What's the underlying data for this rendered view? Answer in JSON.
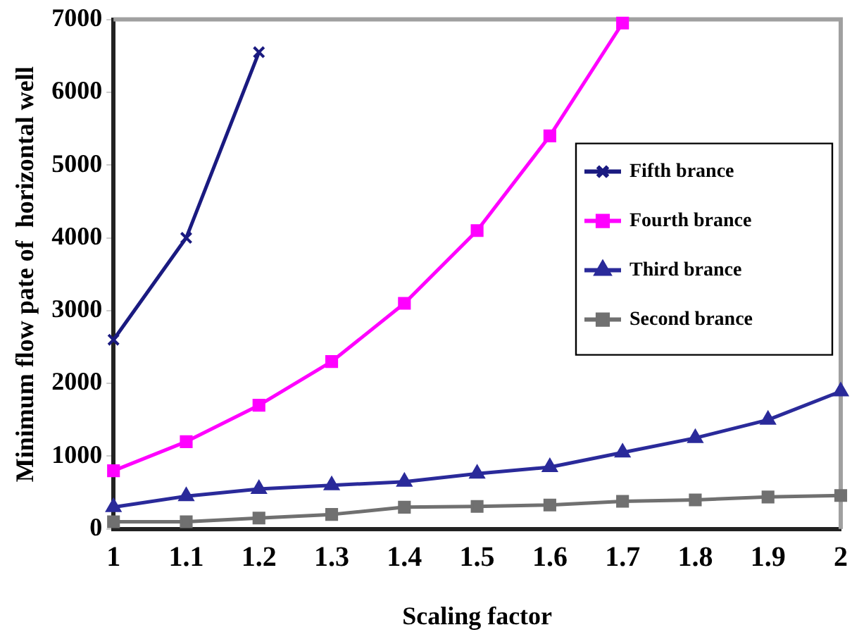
{
  "chart_data": {
    "type": "line",
    "xlabel": "Scaling factor",
    "ylabel": "Minimum flow pate of  horizontal well",
    "xlim": [
      1,
      2
    ],
    "xticks": [
      1,
      1.1,
      1.2,
      1.3,
      1.4,
      1.5,
      1.6,
      1.7,
      1.8,
      1.9,
      2
    ],
    "ylim": [
      0,
      7000
    ],
    "yticks": [
      0,
      1000,
      2000,
      3000,
      4000,
      5000,
      6000,
      7000
    ],
    "grid": false,
    "legend": "right",
    "line_style": "solid",
    "series": [
      {
        "name": "Fifth brance",
        "color": "#1a1a80",
        "marker": "cross",
        "x": [
          1,
          1.1,
          1.2
        ],
        "values": [
          2600,
          4000,
          6550
        ]
      },
      {
        "name": "Fourth brance",
        "color": "#ff00ff",
        "marker": "square",
        "x": [
          1,
          1.1,
          1.2,
          1.3,
          1.4,
          1.5,
          1.6,
          1.7
        ],
        "values": [
          800,
          1200,
          1700,
          2300,
          3100,
          4100,
          5400,
          6950
        ]
      },
      {
        "name": "Third brance",
        "color": "#2a2a9a",
        "marker": "triangle",
        "x": [
          1,
          1.1,
          1.2,
          1.3,
          1.4,
          1.5,
          1.6,
          1.7,
          1.8,
          1.9,
          2
        ],
        "values": [
          300,
          450,
          550,
          600,
          650,
          760,
          850,
          1050,
          1250,
          1500,
          1890
        ]
      },
      {
        "name": "Second brance",
        "color": "#707070",
        "marker": "square",
        "x": [
          1,
          1.1,
          1.2,
          1.3,
          1.4,
          1.5,
          1.6,
          1.7,
          1.8,
          1.9,
          2
        ],
        "values": [
          100,
          100,
          150,
          200,
          300,
          310,
          330,
          380,
          400,
          440,
          460
        ]
      }
    ]
  }
}
